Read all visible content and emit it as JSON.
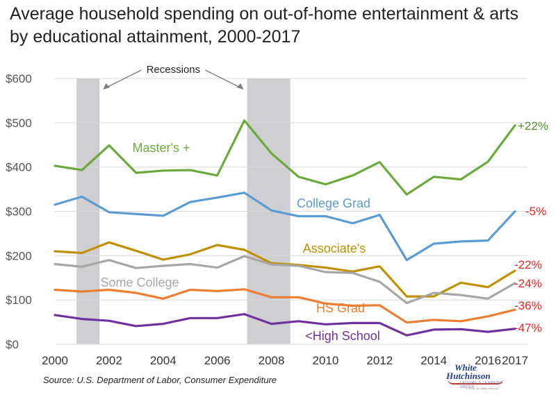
{
  "title_lines": [
    "Average household spending on out-of-home entertainment & arts",
    "by educational attainment, 2000-2017"
  ],
  "source": "Source: U.S. Department of Labor, Consumer Expenditure",
  "logo": {
    "line1": "White",
    "line2": "Hutchinson",
    "line3": "LEISURE & LEARNING GROUP",
    "line4": "© 2018, All rights reserved"
  },
  "chart_data": {
    "type": "line",
    "title": "Average household spending on out-of-home entertainment & arts by educational attainment, 2000-2017",
    "xlabel": "",
    "ylabel": "",
    "x": [
      2000,
      2001,
      2002,
      2003,
      2004,
      2005,
      2006,
      2007,
      2008,
      2009,
      2010,
      2011,
      2012,
      2013,
      2014,
      2015,
      2016,
      2017
    ],
    "x_ticks": [
      2000,
      2002,
      2004,
      2006,
      2008,
      2010,
      2012,
      2014,
      2016,
      2017
    ],
    "ylim": [
      0,
      600
    ],
    "y_ticks": [
      {
        "value": 0,
        "label": "$0"
      },
      {
        "value": 100,
        "label": "$100"
      },
      {
        "value": 200,
        "label": "$200"
      },
      {
        "value": 300,
        "label": "$300"
      },
      {
        "value": 400,
        "label": "$400"
      },
      {
        "value": 500,
        "label": "$500"
      },
      {
        "value": 600,
        "label": "$600"
      }
    ],
    "grid": "horizontal",
    "recession_label": "Recessions",
    "recessions": [
      [
        2000.8,
        2001.65
      ],
      [
        2007.1,
        2008.7
      ]
    ],
    "series": [
      {
        "name": "Master's +",
        "color": "#6aaa3a",
        "change": "+22%",
        "change_color": "#4f8f2a",
        "values": [
          403,
          393,
          449,
          387,
          392,
          393,
          381,
          505,
          431,
          378,
          361,
          381,
          411,
          338,
          378,
          372,
          412,
          494
        ]
      },
      {
        "name": "College Grad",
        "color": "#5b9bd5",
        "change": "-5%",
        "change_color": "#e8231e",
        "values": [
          315,
          333,
          298,
          294,
          290,
          321,
          331,
          342,
          302,
          289,
          289,
          273,
          292,
          190,
          227,
          232,
          234,
          300
        ]
      },
      {
        "name": "Associate's",
        "color": "#bf9000",
        "change": "-22%",
        "change_color": "#e8231e",
        "values": [
          210,
          206,
          230,
          211,
          191,
          203,
          224,
          213,
          183,
          179,
          173,
          164,
          176,
          108,
          108,
          139,
          129,
          166
        ]
      },
      {
        "name": "Some College",
        "color": "#a6a6a6",
        "change": "-24%",
        "change_color": "#e8231e",
        "values": [
          181,
          175,
          190,
          172,
          177,
          181,
          173,
          199,
          180,
          177,
          163,
          161,
          141,
          93,
          116,
          111,
          103,
          138
        ]
      },
      {
        "name": "HS Grad",
        "color": "#ed7d31",
        "change": "-36%",
        "change_color": "#e8231e",
        "values": [
          123,
          119,
          123,
          116,
          103,
          123,
          120,
          124,
          106,
          106,
          92,
          87,
          88,
          49,
          55,
          52,
          63,
          78
        ]
      },
      {
        "name": "<High School",
        "color": "#7030a0",
        "change": "-47%",
        "change_color": "#e8231e",
        "values": [
          66,
          57,
          53,
          41,
          46,
          59,
          59,
          68,
          46,
          52,
          45,
          48,
          48,
          20,
          33,
          34,
          28,
          35
        ]
      }
    ]
  }
}
